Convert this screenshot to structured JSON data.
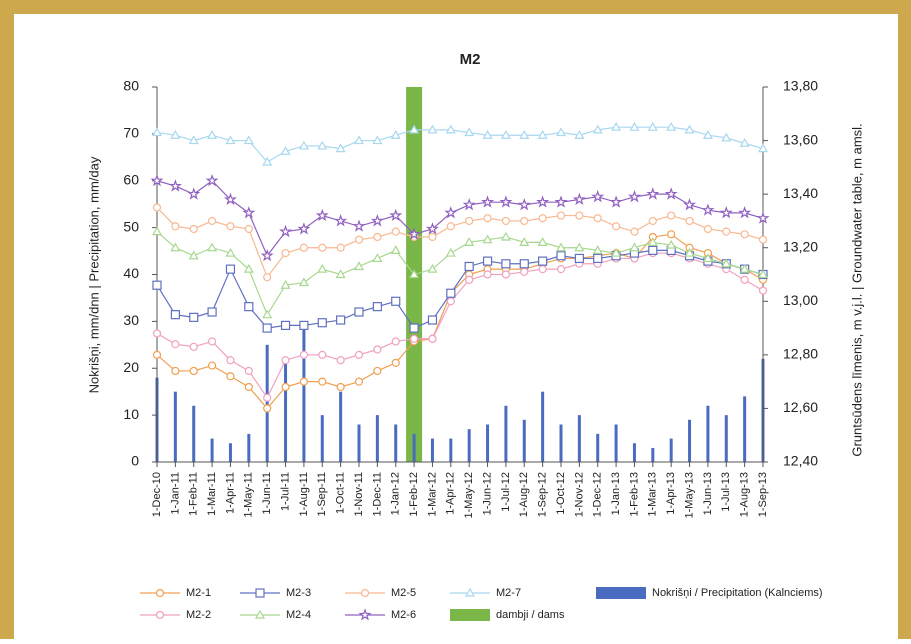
{
  "chart_data": {
    "type": "line",
    "title": "M2",
    "y_label": "Nokrišņi, mm/dnn | Precipitation, mm/day",
    "y2_label": "Gruntsūdens līmenis, m v.j.l. | Groundwater table, m amsl.",
    "categories": [
      "1-Dec-10",
      "1-Jan-11",
      "1-Feb-11",
      "1-Mar-11",
      "1-Apr-11",
      "1-May-11",
      "1-Jun-11",
      "1-Jul-11",
      "1-Aug-11",
      "1-Sep-11",
      "1-Oct-11",
      "1-Nov-11",
      "1-Dec-11",
      "1-Jan-12",
      "1-Feb-12",
      "1-Mar-12",
      "1-Apr-12",
      "1-May-12",
      "1-Jun-12",
      "1-Jul-12",
      "1-Aug-12",
      "1-Sep-12",
      "1-Oct-12",
      "1-Nov-12",
      "1-Dec-12",
      "1-Jan-13",
      "1-Feb-13",
      "1-Mar-13",
      "1-Apr-13",
      "1-May-13",
      "1-Jun-13",
      "1-Jul-13",
      "1-Aug-13",
      "1-Sep-13"
    ],
    "ylim": [
      0,
      80
    ],
    "yticks": [
      0,
      10,
      20,
      30,
      40,
      50,
      60,
      70,
      80
    ],
    "y2lim": [
      12.4,
      13.8
    ],
    "y2ticks": [
      {
        "value": 12.4,
        "label": "12,40"
      },
      {
        "value": 12.6,
        "label": "12,60"
      },
      {
        "value": 12.8,
        "label": "12,80"
      },
      {
        "value": 13.0,
        "label": "13,00"
      },
      {
        "value": 13.2,
        "label": "13,20"
      },
      {
        "value": 13.4,
        "label": "13,40"
      },
      {
        "value": 13.6,
        "label": "13,60"
      },
      {
        "value": 13.8,
        "label": "13,80"
      }
    ],
    "precipitation": {
      "name": "Nokrišņi / Precipitation (Kalnciems)",
      "color": "#4a6cc0",
      "values": [
        18,
        15,
        12,
        5,
        4,
        6,
        25,
        22,
        30,
        10,
        15,
        8,
        10,
        8,
        6,
        5,
        5,
        7,
        8,
        12,
        9,
        15,
        8,
        10,
        6,
        8,
        4,
        3,
        5,
        9,
        12,
        10,
        14,
        22
      ]
    },
    "dams": {
      "name": "dambji / dams",
      "color": "#7ab648",
      "x": "1-Feb-12"
    },
    "series": [
      {
        "name": "M2-1",
        "color": "#f0a050",
        "marker": "circle",
        "axis": "y2",
        "values": [
          12.8,
          12.74,
          12.74,
          12.76,
          12.72,
          12.68,
          12.6,
          12.68,
          12.7,
          12.7,
          12.68,
          12.7,
          12.74,
          12.77,
          12.85,
          12.86,
          13.03,
          13.1,
          13.12,
          13.12,
          13.12,
          13.14,
          13.16,
          13.16,
          13.17,
          13.18,
          13.16,
          13.24,
          13.25,
          13.2,
          13.18,
          13.14,
          13.12,
          13.08
        ]
      },
      {
        "name": "M2-2",
        "color": "#f0a0c0",
        "marker": "circle",
        "axis": "y2",
        "values": [
          12.88,
          12.84,
          12.83,
          12.85,
          12.78,
          12.74,
          12.64,
          12.78,
          12.8,
          12.8,
          12.78,
          12.8,
          12.82,
          12.85,
          12.86,
          12.86,
          13.0,
          13.08,
          13.1,
          13.1,
          13.11,
          13.12,
          13.12,
          13.14,
          13.14,
          13.16,
          13.16,
          13.18,
          13.18,
          13.16,
          13.14,
          13.12,
          13.08,
          13.04
        ]
      },
      {
        "name": "M2-3",
        "color": "#6070c0",
        "marker": "square",
        "axis": "y2",
        "values": [
          13.06,
          12.95,
          12.94,
          12.96,
          13.12,
          12.98,
          12.9,
          12.91,
          12.91,
          12.92,
          12.93,
          12.96,
          12.98,
          13.0,
          12.9,
          12.93,
          13.03,
          13.13,
          13.15,
          13.14,
          13.14,
          13.15,
          13.17,
          13.16,
          13.16,
          13.17,
          13.18,
          13.19,
          13.19,
          13.17,
          13.15,
          13.14,
          13.12,
          13.1
        ]
      },
      {
        "name": "M2-4",
        "color": "#a8d890",
        "marker": "triangle",
        "axis": "y2",
        "values": [
          13.26,
          13.2,
          13.17,
          13.2,
          13.18,
          13.12,
          12.95,
          13.06,
          13.07,
          13.12,
          13.1,
          13.13,
          13.16,
          13.19,
          13.1,
          13.12,
          13.18,
          13.22,
          13.23,
          13.24,
          13.22,
          13.22,
          13.2,
          13.2,
          13.19,
          13.18,
          13.2,
          13.22,
          13.21,
          13.18,
          13.16,
          13.14,
          13.12,
          13.1
        ]
      },
      {
        "name": "M2-5",
        "color": "#f8b890",
        "marker": "circle",
        "axis": "y2",
        "values": [
          13.35,
          13.28,
          13.27,
          13.3,
          13.28,
          13.27,
          13.09,
          13.18,
          13.2,
          13.2,
          13.2,
          13.23,
          13.24,
          13.26,
          13.24,
          13.24,
          13.28,
          13.3,
          13.31,
          13.3,
          13.3,
          13.31,
          13.32,
          13.32,
          13.31,
          13.28,
          13.26,
          13.3,
          13.32,
          13.3,
          13.27,
          13.26,
          13.25,
          13.23
        ]
      },
      {
        "name": "M2-6",
        "color": "#9060c0",
        "marker": "star",
        "axis": "y2",
        "values": [
          13.45,
          13.43,
          13.4,
          13.45,
          13.38,
          13.33,
          13.17,
          13.26,
          13.27,
          13.32,
          13.3,
          13.28,
          13.3,
          13.32,
          13.25,
          13.27,
          13.33,
          13.36,
          13.37,
          13.37,
          13.36,
          13.37,
          13.37,
          13.38,
          13.39,
          13.37,
          13.39,
          13.4,
          13.4,
          13.36,
          13.34,
          13.33,
          13.33,
          13.31
        ]
      },
      {
        "name": "M2-7",
        "color": "#a8d8f0",
        "marker": "triangle",
        "axis": "y2",
        "values": [
          13.63,
          13.62,
          13.6,
          13.62,
          13.6,
          13.6,
          13.52,
          13.56,
          13.58,
          13.58,
          13.57,
          13.6,
          13.6,
          13.62,
          13.64,
          13.64,
          13.64,
          13.63,
          13.62,
          13.62,
          13.62,
          13.62,
          13.63,
          13.62,
          13.64,
          13.65,
          13.65,
          13.65,
          13.65,
          13.64,
          13.62,
          13.61,
          13.59,
          13.57
        ]
      }
    ]
  }
}
